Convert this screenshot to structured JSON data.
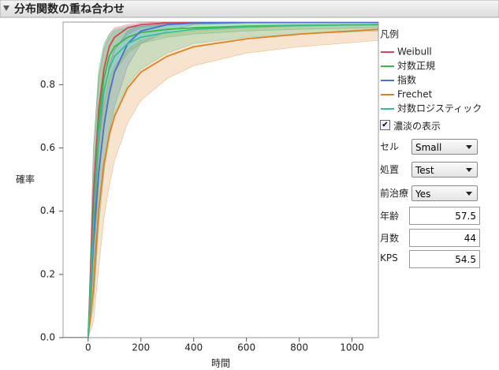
{
  "chart_data": {
    "type": "line",
    "title": "分布関数の重ね合わせ",
    "x_label": "時間",
    "y_label": "確率",
    "legend_title": "凡例",
    "x": [
      -95,
      0,
      20,
      40,
      60,
      80,
      100,
      150,
      200,
      300,
      400,
      600,
      800,
      1100
    ],
    "xlim": [
      -95,
      1100
    ],
    "xticks": [
      0,
      200,
      400,
      600,
      800,
      1000
    ],
    "ylim": [
      0,
      0.998
    ],
    "yticks": [
      {
        "value": 0,
        "label": "0.0"
      },
      0.2,
      0.4,
      0.6,
      0.8
    ],
    "shaded": true,
    "series": [
      {
        "name": "Weibull",
        "color": "#d9435a",
        "values": [
          0,
          0,
          0.45,
          0.72,
          0.85,
          0.92,
          0.95,
          0.98,
          0.99,
          0.995,
          0.997,
          0.998,
          0.998,
          0.998
        ],
        "lower": [
          0,
          0,
          0.3,
          0.6,
          0.77,
          0.86,
          0.91,
          0.96,
          0.98,
          0.99,
          0.993,
          0.995,
          0.995,
          0.995
        ],
        "upper": [
          0,
          0,
          0.6,
          0.83,
          0.92,
          0.96,
          0.98,
          0.99,
          0.995,
          0.998,
          0.998,
          0.998,
          0.998,
          0.998
        ]
      },
      {
        "name": "対数正規",
        "color": "#3fb63f",
        "values": [
          0,
          0,
          0.35,
          0.68,
          0.82,
          0.89,
          0.92,
          0.95,
          0.965,
          0.975,
          0.98,
          0.985,
          0.988,
          0.99
        ],
        "lower": [
          0,
          0,
          0.2,
          0.5,
          0.68,
          0.78,
          0.84,
          0.9,
          0.93,
          0.95,
          0.96,
          0.97,
          0.975,
          0.98
        ],
        "upper": [
          0,
          0,
          0.52,
          0.82,
          0.91,
          0.95,
          0.97,
          0.98,
          0.985,
          0.99,
          0.993,
          0.995,
          0.996,
          0.997
        ]
      },
      {
        "name": "指数",
        "color": "#4a6fd4",
        "values": [
          0,
          0,
          0.3,
          0.52,
          0.67,
          0.77,
          0.84,
          0.93,
          0.97,
          0.99,
          0.995,
          0.998,
          0.998,
          0.998
        ],
        "lower": [
          0,
          0,
          0.22,
          0.4,
          0.55,
          0.65,
          0.73,
          0.86,
          0.93,
          0.97,
          0.99,
          0.995,
          0.996,
          0.996
        ],
        "upper": [
          0,
          0,
          0.38,
          0.62,
          0.77,
          0.86,
          0.91,
          0.97,
          0.99,
          0.997,
          0.998,
          0.998,
          0.998,
          0.998
        ]
      },
      {
        "name": "Frechet",
        "color": "#e07f20",
        "values": [
          0,
          0,
          0.15,
          0.4,
          0.55,
          0.64,
          0.7,
          0.79,
          0.84,
          0.89,
          0.92,
          0.945,
          0.96,
          0.975
        ],
        "lower": [
          0,
          0,
          0.05,
          0.22,
          0.38,
          0.48,
          0.56,
          0.68,
          0.75,
          0.82,
          0.86,
          0.9,
          0.92,
          0.94
        ],
        "upper": [
          0,
          0,
          0.3,
          0.6,
          0.74,
          0.82,
          0.86,
          0.91,
          0.94,
          0.96,
          0.97,
          0.98,
          0.985,
          0.99
        ]
      },
      {
        "name": "対数ロジスティック",
        "color": "#35bf8c",
        "values": [
          0,
          0,
          0.35,
          0.65,
          0.78,
          0.85,
          0.89,
          0.93,
          0.95,
          0.965,
          0.975,
          0.983,
          0.987,
          0.99
        ],
        "lower": [
          0,
          0,
          0.1,
          0.35,
          0.52,
          0.63,
          0.71,
          0.8,
          0.85,
          0.9,
          0.93,
          0.95,
          0.96,
          0.97
        ],
        "upper": [
          0,
          0,
          0.6,
          0.85,
          0.93,
          0.96,
          0.975,
          0.985,
          0.99,
          0.993,
          0.995,
          0.996,
          0.997,
          0.998
        ]
      }
    ]
  },
  "controls": {
    "shade_label": "濃淡の表示",
    "shade_checked": true,
    "dropdowns": [
      {
        "label": "セル",
        "value": "Small"
      },
      {
        "label": "処置",
        "value": "Test"
      },
      {
        "label": "前治療",
        "value": "Yes"
      }
    ],
    "inputs": [
      {
        "label": "年齢",
        "value": "57.5"
      },
      {
        "label": "月数",
        "value": "44"
      },
      {
        "label": "KPS",
        "value": "54.5"
      }
    ]
  }
}
